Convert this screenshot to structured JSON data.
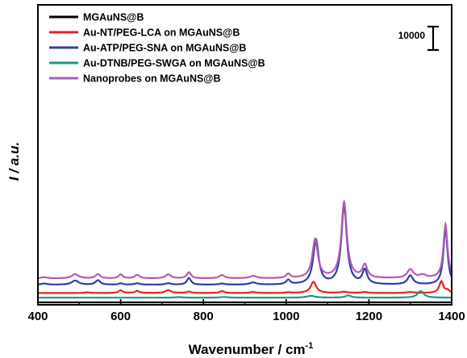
{
  "chart_data": {
    "type": "line",
    "xlabel": "Wavenumber / cm",
    "xlabel_superscript": "-1",
    "ylabel": "I / a.u.",
    "xlim": [
      400,
      1400
    ],
    "x_ticks": [
      400,
      600,
      800,
      1000,
      1200,
      1400
    ],
    "scale_bar_label": "10000",
    "legend_position": "top-left",
    "grid": false,
    "series": [
      {
        "name": "MGAuNS@B",
        "color": "#000000",
        "baseline": 0,
        "peaks": []
      },
      {
        "name": "Au-NT/PEG-LCA on MGAuNS@B",
        "color": "#e8231e",
        "baseline": 4000,
        "peaks": [
          [
            520,
            300,
            6
          ],
          [
            600,
            1100,
            6
          ],
          [
            640,
            900,
            6
          ],
          [
            715,
            1200,
            8
          ],
          [
            765,
            600,
            6
          ],
          [
            845,
            800,
            6
          ],
          [
            920,
            400,
            8
          ],
          [
            1005,
            300,
            6
          ],
          [
            1066,
            4800,
            8
          ],
          [
            1140,
            500,
            10
          ],
          [
            1190,
            400,
            8
          ],
          [
            1300,
            400,
            10
          ],
          [
            1375,
            5000,
            6
          ],
          [
            1390,
            1000,
            5
          ]
        ]
      },
      {
        "name": "Au-ATP/PEG-SNA  on MGAuNS@B",
        "color": "#2e3fa0",
        "baseline": 7500,
        "peaks": [
          [
            415,
            500,
            10
          ],
          [
            490,
            1800,
            10
          ],
          [
            545,
            1900,
            7
          ],
          [
            600,
            600,
            6
          ],
          [
            640,
            600,
            8
          ],
          [
            715,
            600,
            8
          ],
          [
            765,
            2900,
            6
          ],
          [
            845,
            500,
            8
          ],
          [
            920,
            900,
            10
          ],
          [
            1005,
            1900,
            6
          ],
          [
            1072,
            19000,
            8
          ],
          [
            1140,
            33500,
            8
          ],
          [
            1190,
            6000,
            7
          ],
          [
            1300,
            3800,
            8
          ],
          [
            1385,
            24000,
            6
          ]
        ]
      },
      {
        "name": "Au-DTNB/PEG-SWGA on MGAuNS@B",
        "color": "#1e9688",
        "baseline": 2000,
        "peaks": [
          [
            740,
            250,
            10
          ],
          [
            850,
            300,
            10
          ],
          [
            1060,
            800,
            12
          ],
          [
            1150,
            1000,
            8
          ],
          [
            1325,
            2800,
            9
          ]
        ]
      },
      {
        "name": "Nanoprobes on MGAuNS@B",
        "color": "#b05ab8",
        "baseline": 10200,
        "peaks": [
          [
            415,
            500,
            10
          ],
          [
            490,
            1800,
            10
          ],
          [
            545,
            1800,
            7
          ],
          [
            600,
            1700,
            6
          ],
          [
            640,
            1500,
            7
          ],
          [
            715,
            1700,
            8
          ],
          [
            765,
            2600,
            6
          ],
          [
            845,
            1400,
            8
          ],
          [
            920,
            1000,
            10
          ],
          [
            1005,
            1800,
            6
          ],
          [
            1070,
            16500,
            8
          ],
          [
            1140,
            32500,
            8
          ],
          [
            1190,
            5500,
            7
          ],
          [
            1300,
            3700,
            9
          ],
          [
            1330,
            1300,
            10
          ],
          [
            1385,
            23000,
            6
          ]
        ]
      }
    ]
  }
}
